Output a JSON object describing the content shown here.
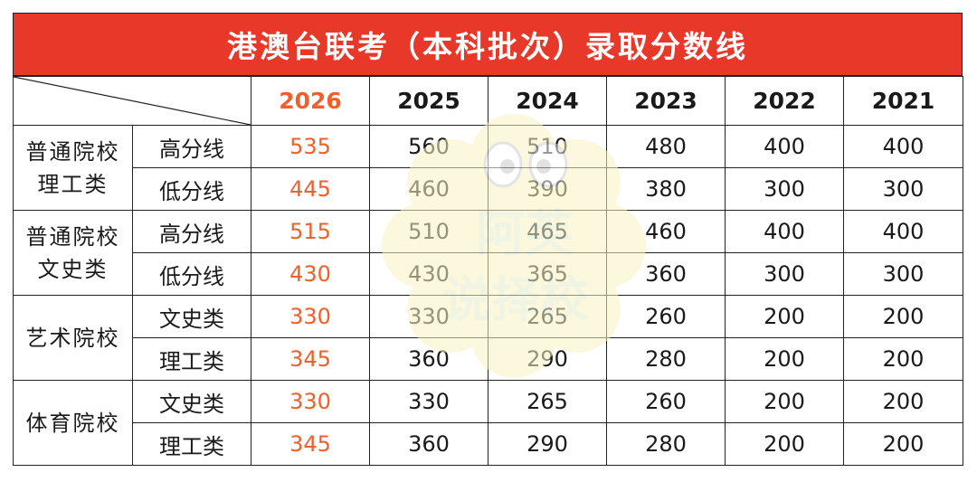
{
  "title": "港澳台联考（本科批次）录取分数线",
  "years": [
    "2026",
    "2025",
    "2024",
    "2023",
    "2022",
    "2021"
  ],
  "highlight_color": "#f0602a",
  "title_bg_color": "#e8382a",
  "groups": [
    {
      "name_line1": "普通院校",
      "name_line2": "理工类",
      "rows": [
        {
          "label": "高分线",
          "values": [
            "535",
            "560",
            "510",
            "480",
            "400",
            "400"
          ]
        },
        {
          "label": "低分线",
          "values": [
            "445",
            "460",
            "390",
            "380",
            "300",
            "300"
          ]
        }
      ]
    },
    {
      "name_line1": "普通院校",
      "name_line2": "文史类",
      "rows": [
        {
          "label": "高分线",
          "values": [
            "515",
            "510",
            "465",
            "460",
            "400",
            "400"
          ]
        },
        {
          "label": "低分线",
          "values": [
            "430",
            "430",
            "365",
            "360",
            "300",
            "300"
          ]
        }
      ]
    },
    {
      "name_line1": "艺术院校",
      "name_line2": "",
      "rows": [
        {
          "label": "文史类",
          "values": [
            "330",
            "330",
            "265",
            "260",
            "200",
            "200"
          ]
        },
        {
          "label": "理工类",
          "values": [
            "345",
            "360",
            "290",
            "280",
            "200",
            "200"
          ]
        }
      ]
    },
    {
      "name_line1": "体育院校",
      "name_line2": "",
      "rows": [
        {
          "label": "文史类",
          "values": [
            "330",
            "330",
            "265",
            "260",
            "200",
            "200"
          ]
        },
        {
          "label": "理工类",
          "values": [
            "345",
            "360",
            "290",
            "280",
            "200",
            "200"
          ]
        }
      ]
    }
  ],
  "watermark": {
    "line1": "阿芙",
    "line2": "说择校"
  }
}
